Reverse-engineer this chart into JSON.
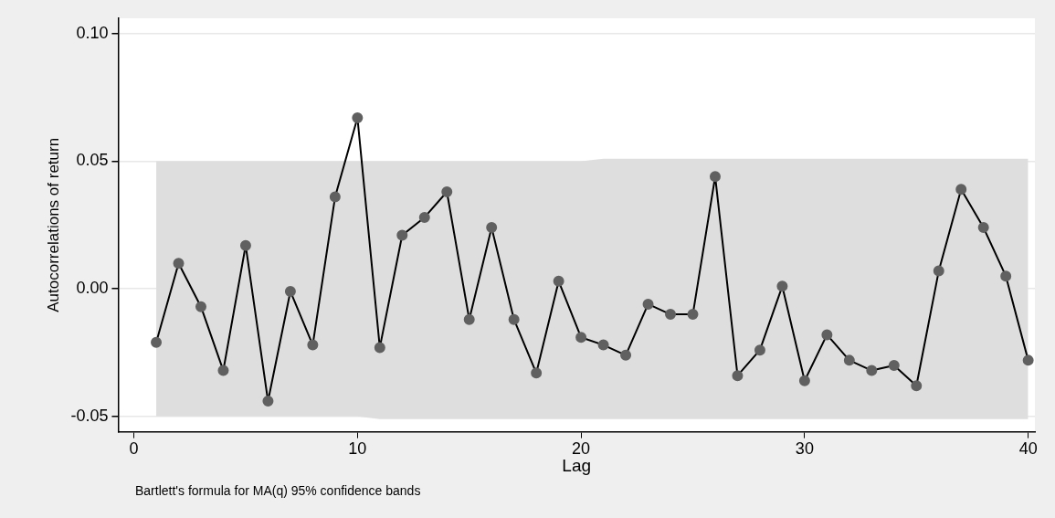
{
  "chart_data": {
    "type": "line",
    "xlabel": "Lag",
    "ylabel": "Autocorrelations of return",
    "annotations": [
      "Bartlett's formula for MA(q) 95% confidence bands"
    ],
    "xlim": [
      -0.7,
      40.3
    ],
    "xticks": [
      0,
      10,
      20,
      30,
      40
    ],
    "ylim": [
      -0.056,
      0.106
    ],
    "yticks": [
      {
        "value": -0.05,
        "label": "-0.05"
      },
      {
        "value": 0,
        "label": "0.00"
      },
      {
        "value": 0.05,
        "label": "0.05"
      },
      {
        "value": 0.1,
        "label": "0.10"
      }
    ],
    "grid": "y",
    "legend": false,
    "marker": "circle",
    "line_style": "solid",
    "series": [
      {
        "color": "#000000",
        "x": [
          1,
          2,
          3,
          4,
          5,
          6,
          7,
          8,
          9,
          10,
          11,
          12,
          13,
          14,
          15,
          16,
          17,
          18,
          19,
          20,
          21,
          22,
          23,
          24,
          25,
          26,
          27,
          28,
          29,
          30,
          31,
          32,
          33,
          34,
          35,
          36,
          37,
          38,
          39,
          40
        ],
        "values": [
          -0.021,
          0.01,
          -0.007,
          -0.032,
          0.017,
          -0.044,
          -0.001,
          -0.022,
          0.036,
          0.067,
          -0.023,
          0.021,
          0.028,
          0.038,
          -0.012,
          0.024,
          -0.012,
          -0.033,
          0.003,
          -0.019,
          -0.022,
          -0.026,
          -0.006,
          -0.01,
          -0.01,
          0.044,
          -0.034,
          -0.024,
          0.001,
          -0.036,
          -0.018,
          -0.028,
          -0.032,
          -0.03,
          -0.038,
          0.007,
          0.039,
          0.024,
          0.005,
          -0.028
        ],
        "upper": [
          0.05,
          0.05,
          0.05,
          0.05,
          0.05,
          0.05,
          0.05,
          0.05,
          0.05,
          0.05,
          0.05,
          0.05,
          0.05,
          0.05,
          0.05,
          0.05,
          0.05,
          0.05,
          0.05,
          0.05,
          0.051,
          0.051,
          0.051,
          0.051,
          0.051,
          0.051,
          0.051,
          0.051,
          0.051,
          0.051,
          0.051,
          0.051,
          0.051,
          0.051,
          0.051,
          0.051,
          0.051,
          0.051,
          0.051,
          0.051
        ],
        "lower": [
          -0.05,
          -0.05,
          -0.05,
          -0.05,
          -0.05,
          -0.05,
          -0.05,
          -0.05,
          -0.05,
          -0.05,
          -0.051,
          -0.051,
          -0.051,
          -0.051,
          -0.051,
          -0.051,
          -0.051,
          -0.051,
          -0.051,
          -0.051,
          -0.051,
          -0.051,
          -0.051,
          -0.051,
          -0.051,
          -0.051,
          -0.051,
          -0.051,
          -0.051,
          -0.051,
          -0.051,
          -0.051,
          -0.051,
          -0.051,
          -0.051,
          -0.051,
          -0.051,
          -0.051,
          -0.051,
          -0.051
        ]
      }
    ]
  }
}
